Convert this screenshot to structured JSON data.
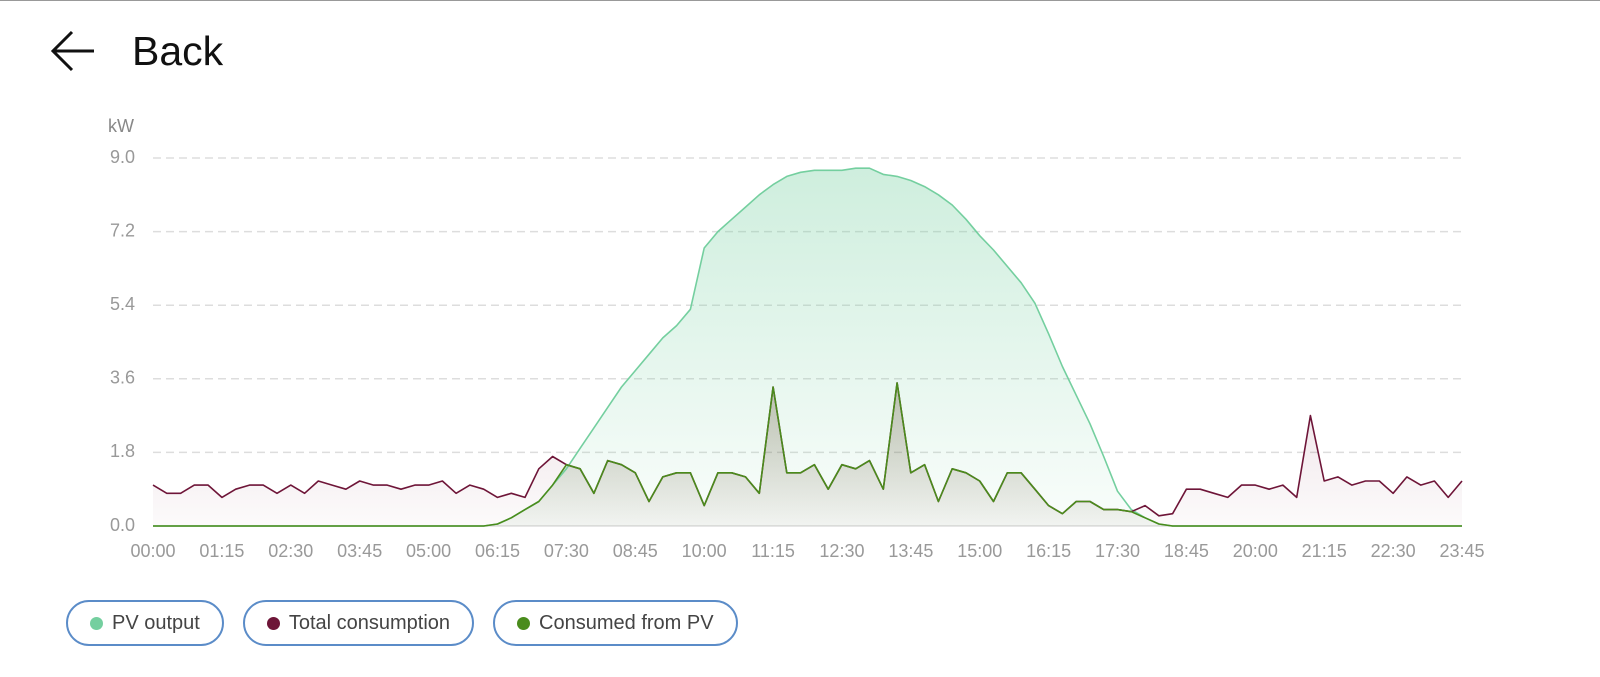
{
  "header": {
    "back": "Back"
  },
  "chart_data": {
    "type": "line",
    "y_label": "kW",
    "categories": [
      "00:00",
      null,
      null,
      null,
      null,
      "01:15",
      null,
      null,
      null,
      null,
      "02:30",
      null,
      null,
      null,
      null,
      "03:45",
      null,
      null,
      null,
      null,
      "05:00",
      null,
      null,
      null,
      null,
      "06:15",
      null,
      null,
      null,
      null,
      "07:30",
      null,
      null,
      null,
      null,
      "08:45",
      null,
      null,
      null,
      null,
      "10:00",
      null,
      null,
      null,
      null,
      "11:15",
      null,
      null,
      null,
      null,
      "12:30",
      null,
      null,
      null,
      null,
      "13:45",
      null,
      null,
      null,
      null,
      "15:00",
      null,
      null,
      null,
      null,
      "16:15",
      null,
      null,
      null,
      null,
      "17:30",
      null,
      null,
      null,
      null,
      "18:45",
      null,
      null,
      null,
      null,
      "20:00",
      null,
      null,
      null,
      null,
      "21:15",
      null,
      null,
      null,
      null,
      "22:30",
      null,
      null,
      null,
      null,
      "23:45"
    ],
    "ylim": [
      0,
      9
    ],
    "yticks": [
      {
        "value": 0,
        "label": "0.0"
      },
      1.8,
      3.6,
      5.4,
      7.2,
      {
        "value": 9,
        "label": "9.0"
      }
    ],
    "grid": true,
    "series": [
      {
        "name": "PV output",
        "color": "#74cf9f",
        "area": true,
        "values": [
          0,
          0,
          0,
          0,
          0,
          0,
          0,
          0,
          0,
          0,
          0,
          0,
          0,
          0,
          0,
          0,
          0,
          0,
          0,
          0,
          0,
          0,
          0,
          0,
          0,
          0.05,
          0.2,
          0.4,
          0.6,
          1.0,
          1.4,
          1.9,
          2.4,
          2.9,
          3.4,
          3.8,
          4.2,
          4.6,
          4.9,
          5.3,
          6.8,
          7.2,
          7.5,
          7.8,
          8.1,
          8.35,
          8.55,
          8.65,
          8.7,
          8.7,
          8.7,
          8.75,
          8.75,
          8.6,
          8.55,
          8.45,
          8.3,
          8.1,
          7.85,
          7.5,
          7.1,
          6.75,
          6.35,
          5.95,
          5.45,
          4.7,
          3.9,
          3.2,
          2.5,
          1.7,
          0.85,
          0.4,
          0.2,
          0.05,
          0,
          0,
          0,
          0,
          0,
          0,
          0,
          0,
          0,
          0,
          0,
          0,
          0,
          0,
          0,
          0,
          0,
          0,
          0,
          0,
          0,
          0
        ]
      },
      {
        "name": "Total consumption",
        "color": "#6e1538",
        "area": true,
        "values": [
          1.0,
          0.8,
          0.8,
          1.0,
          1.0,
          0.7,
          0.9,
          1.0,
          1.0,
          0.8,
          1.0,
          0.8,
          1.1,
          1.0,
          0.9,
          1.1,
          1.0,
          1.0,
          0.9,
          1.0,
          1.0,
          1.1,
          0.8,
          1.0,
          0.9,
          0.7,
          0.8,
          0.7,
          1.4,
          1.7,
          1.5,
          1.4,
          0.8,
          1.6,
          1.5,
          1.3,
          0.6,
          1.2,
          1.3,
          1.3,
          0.5,
          1.3,
          1.3,
          1.2,
          0.8,
          3.4,
          1.3,
          1.3,
          1.5,
          0.9,
          1.5,
          1.4,
          1.6,
          0.9,
          3.5,
          1.3,
          1.5,
          0.6,
          1.4,
          1.3,
          1.1,
          0.6,
          1.3,
          1.3,
          0.9,
          0.5,
          0.3,
          0.6,
          0.6,
          0.4,
          0.4,
          0.35,
          0.5,
          0.25,
          0.3,
          0.9,
          0.9,
          0.8,
          0.7,
          1.0,
          1.0,
          0.9,
          1.0,
          0.7,
          2.7,
          1.1,
          1.2,
          1.0,
          1.1,
          1.1,
          0.8,
          1.2,
          1.0,
          1.1,
          0.7,
          1.1
        ]
      },
      {
        "name": "Consumed from PV",
        "color": "#4a8c1c",
        "area": true,
        "values": [
          0,
          0,
          0,
          0,
          0,
          0,
          0,
          0,
          0,
          0,
          0,
          0,
          0,
          0,
          0,
          0,
          0,
          0,
          0,
          0,
          0,
          0,
          0,
          0,
          0,
          0.05,
          0.2,
          0.4,
          0.6,
          1.0,
          1.5,
          1.4,
          0.8,
          1.6,
          1.5,
          1.3,
          0.6,
          1.2,
          1.3,
          1.3,
          0.5,
          1.3,
          1.3,
          1.2,
          0.8,
          3.4,
          1.3,
          1.3,
          1.5,
          0.9,
          1.5,
          1.4,
          1.6,
          0.9,
          3.5,
          1.3,
          1.5,
          0.6,
          1.4,
          1.3,
          1.1,
          0.6,
          1.3,
          1.3,
          0.9,
          0.5,
          0.3,
          0.6,
          0.6,
          0.4,
          0.4,
          0.35,
          0.2,
          0.05,
          0,
          0,
          0,
          0,
          0,
          0,
          0,
          0,
          0,
          0,
          0,
          0,
          0,
          0,
          0,
          0,
          0,
          0,
          0,
          0,
          0,
          0
        ]
      }
    ]
  }
}
